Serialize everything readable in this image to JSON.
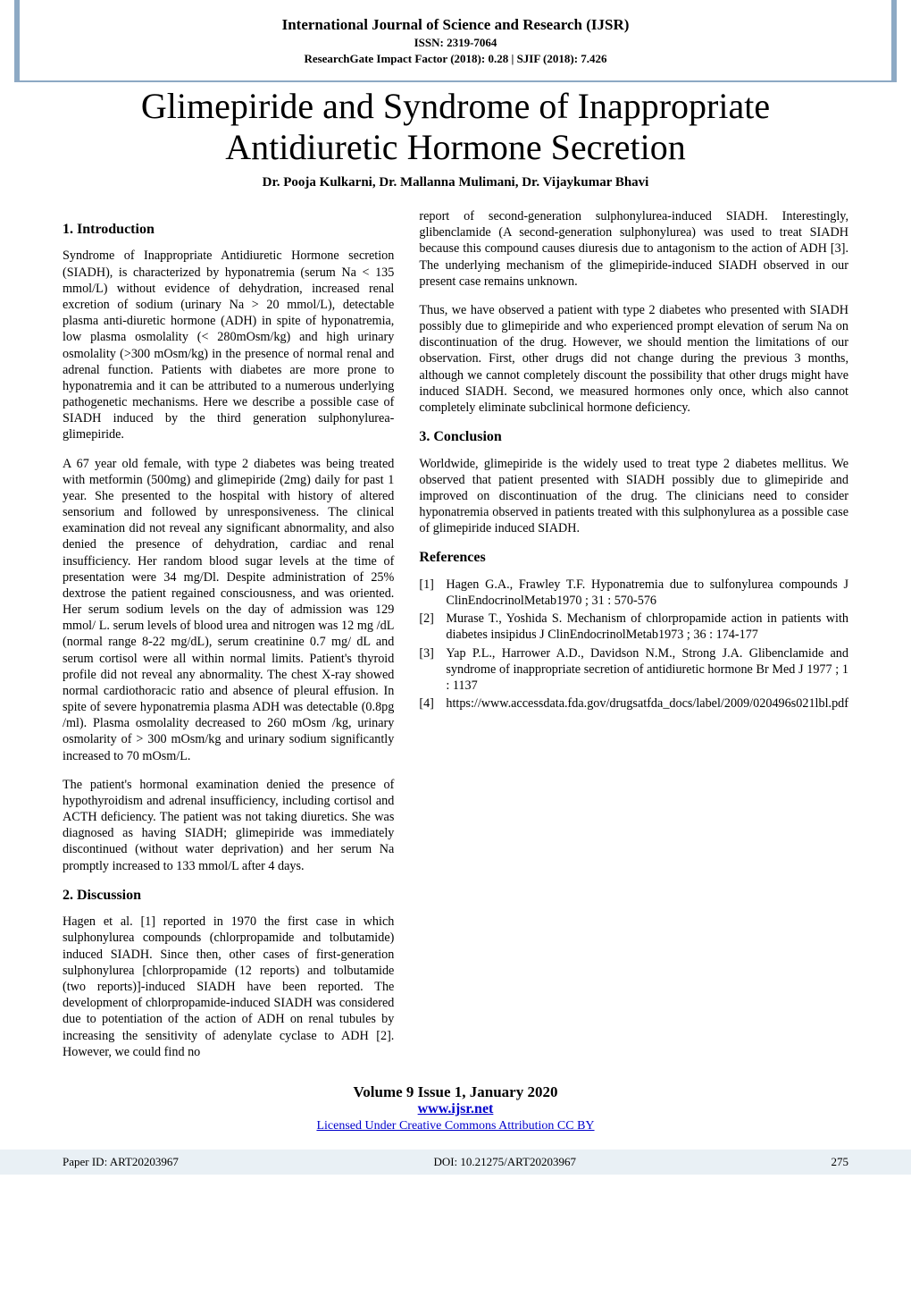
{
  "colors": {
    "border": "#8da9c4",
    "link": "#0000cc",
    "bottom_bar_bg": "#e9f0f5",
    "text": "#000000",
    "background": "#ffffff"
  },
  "typography": {
    "body_family": "Times New Roman",
    "body_size_pt": 10.5,
    "title_size_pt": 30,
    "heading_size_pt": 12,
    "journal_title_size_pt": 13
  },
  "header": {
    "journal_title": "International Journal of Science and Research (IJSR)",
    "issn": "ISSN: 2319-7064",
    "impact": "ResearchGate Impact Factor (2018): 0.28 | SJIF (2018): 7.426"
  },
  "article": {
    "title": "Glimepiride and Syndrome of Inappropriate Antidiuretic Hormone Secretion",
    "authors": "Dr. Pooja Kulkarni, Dr. Mallanna Mulimani, Dr. Vijaykumar Bhavi"
  },
  "sections": {
    "intro_heading": "1. Introduction",
    "intro_p1": "Syndrome of Inappropriate Antidiuretic Hormone secretion (SIADH), is characterized by hyponatremia (serum Na < 135 mmol/L) without evidence of dehydration, increased renal excretion of sodium (urinary Na > 20 mmol/L), detectable plasma anti-diuretic hormone (ADH) in spite of hyponatremia, low plasma osmolality (< 280mOsm/kg) and high urinary osmolality (>300 mOsm/kg) in the presence of normal renal and adrenal function. Patients with diabetes are more prone to hyponatremia and it can be attributed to a numerous underlying pathogenetic mechanisms. Here we describe a possible case of SIADH induced by the third generation sulphonylurea- glimepiride.",
    "intro_p2": "A 67 year old female, with type 2 diabetes was being treated with metformin (500mg) and glimepiride (2mg) daily for past 1 year. She presented to the hospital with history of altered sensorium and followed by unresponsiveness. The clinical examination did not reveal any significant abnormality, and also denied the presence of dehydration, cardiac and renal insufficiency. Her random blood sugar levels at the time of presentation were 34 mg/Dl. Despite administration of 25% dextrose the patient regained consciousness, and was oriented. Her serum sodium levels on the day of admission was 129 mmol/ L. serum levels of blood urea and nitrogen was 12 mg /dL (normal range 8-22 mg/dL), serum creatinine 0.7 mg/ dL and serum cortisol were all within normal limits. Patient's thyroid profile did not reveal any abnormality. The chest X-ray showed normal cardiothoracic ratio and absence of pleural effusion. In spite of severe hyponatremia plasma ADH was detectable (0.8pg /ml). Plasma osmolality decreased to 260 mOsm /kg, urinary osmolarity of > 300 mOsm/kg and urinary sodium significantly increased to 70 mOsm/L.",
    "intro_p3": "The patient's hormonal examination denied the presence of hypothyroidism and adrenal insufficiency, including cortisol and ACTH deficiency. The patient was not taking diuretics. She was diagnosed as having SIADH; glimepiride was immediately discontinued (without water deprivation) and her serum Na promptly increased to 133 mmol/L after 4 days.",
    "discussion_heading": "2. Discussion",
    "discussion_p1": "Hagen et al. [1] reported in 1970 the first case in which sulphonylurea compounds (chlorpropamide and tolbutamide) induced SIADH. Since then, other cases of first-generation sulphonylurea [chlorpropamide (12 reports) and tolbutamide (two reports)]-induced SIADH have been reported. The development of chlorpropamide-induced SIADH was considered due to potentiation of the action of ADH on renal tubules by increasing the sensitivity of adenylate cyclase to ADH [2]. However, we could find no",
    "discussion_p2": "report of second-generation sulphonylurea-induced SIADH. Interestingly, glibenclamide (A second-generation sulphonylurea) was used to treat SIADH because this compound causes diuresis due to antagonism to the action of ADH [3]. The underlying mechanism of the glimepiride-induced SIADH observed in our present case remains unknown.",
    "discussion_p3": "Thus, we have observed a patient with type 2 diabetes who presented with SIADH possibly due to glimepiride and who experienced prompt elevation of serum Na on discontinuation of the drug. However, we should mention the limitations of our observation. First, other drugs did not change during the previous 3 months, although we cannot completely discount the possibility that other drugs might have induced SIADH. Second, we measured hormones only once, which also cannot completely eliminate subclinical hormone deficiency.",
    "conclusion_heading": "3. Conclusion",
    "conclusion_p1": "Worldwide, glimepiride is the widely used to treat type 2 diabetes mellitus. We observed that patient presented with SIADH possibly due to glimepiride and improved on discontinuation of the drug. The clinicians need to consider hyponatremia observed in patients treated with this sulphonylurea as a possible case of glimepiride induced SIADH.",
    "references_heading": "References"
  },
  "references": [
    {
      "num": "[1]",
      "text": "Hagen G.A., Frawley T.F. Hyponatremia due to sulfonylurea compounds J ClinEndocrinolMetab1970 ; 31 : 570-576"
    },
    {
      "num": "[2]",
      "text": "Murase T., Yoshida S. Mechanism of chlorpropamide action in patients with diabetes insipidus J ClinEndocrinolMetab1973 ; 36 : 174-177"
    },
    {
      "num": "[3]",
      "text": "Yap P.L., Harrower A.D., Davidson N.M., Strong J.A. Glibenclamide and syndrome of inappropriate secretion of antidiuretic hormone Br Med J 1977 ; 1 : 1137"
    },
    {
      "num": "[4]",
      "text": "https://www.accessdata.fda.gov/drugsatfda_docs/label/2009/020496s021lbl.pdf"
    }
  ],
  "footer": {
    "vol_issue": "Volume 9 Issue 1, January 2020",
    "site": "www.ijsr.net",
    "license": "Licensed Under Creative Commons Attribution CC BY"
  },
  "bottom": {
    "paper_id": "Paper ID: ART20203967",
    "doi": "DOI: 10.21275/ART20203967",
    "page": "275"
  }
}
